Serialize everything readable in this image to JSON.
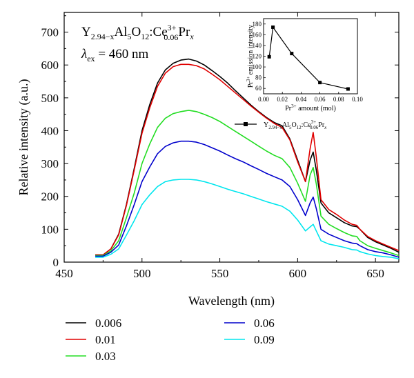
{
  "chart_data": [
    {
      "type": "line",
      "title": "",
      "annotation": {
        "formula": {
          "base": "Y",
          "s1": "2.94−x",
          "mid1": "Al",
          "s2": "5",
          "mid2": "O",
          "s3": "12",
          "mid3": ":Ce",
          "sup": "3+",
          "s4": "0.06",
          "mid4": "Pr",
          "s5": "x"
        },
        "excitation": {
          "symbol": "λ",
          "sub": "ex",
          "value": " = 460 nm"
        }
      },
      "xlabel": "Wavelength (nm)",
      "ylabel": "Relative intensity (a.u.)",
      "xlim": [
        450,
        665
      ],
      "ylim": [
        0,
        760
      ],
      "xticks": [
        450,
        500,
        550,
        600,
        650
      ],
      "yticks": [
        0,
        100,
        200,
        300,
        400,
        500,
        600,
        700
      ],
      "grid": false,
      "legend_position": "bottom",
      "x": [
        470,
        475,
        480,
        485,
        490,
        495,
        500,
        505,
        510,
        515,
        520,
        525,
        530,
        535,
        540,
        545,
        550,
        555,
        560,
        565,
        570,
        575,
        580,
        585,
        590,
        595,
        600,
        605,
        608,
        610,
        612,
        615,
        620,
        625,
        630,
        635,
        638,
        640,
        645,
        650,
        655,
        660,
        665
      ],
      "series": [
        {
          "name": "0.006",
          "color": "#000000",
          "values": [
            22,
            22,
            40,
            85,
            175,
            285,
            400,
            480,
            545,
            585,
            605,
            615,
            618,
            612,
            600,
            583,
            565,
            545,
            522,
            500,
            478,
            458,
            440,
            425,
            415,
            375,
            310,
            245,
            310,
            335,
            280,
            180,
            150,
            135,
            120,
            110,
            108,
            100,
            75,
            62,
            52,
            42,
            30
          ]
        },
        {
          "name": "0.01",
          "color": "#e00000",
          "values": [
            22,
            22,
            40,
            83,
            172,
            280,
            392,
            470,
            535,
            575,
            595,
            602,
            602,
            598,
            588,
            572,
            555,
            535,
            515,
            495,
            475,
            456,
            438,
            422,
            410,
            372,
            305,
            245,
            345,
            395,
            320,
            190,
            160,
            145,
            128,
            115,
            112,
            100,
            78,
            65,
            55,
            45,
            35
          ]
        },
        {
          "name": "0.03",
          "color": "#22dd22",
          "values": [
            20,
            20,
            34,
            65,
            135,
            210,
            300,
            360,
            410,
            438,
            452,
            458,
            462,
            458,
            450,
            440,
            428,
            413,
            398,
            383,
            368,
            353,
            338,
            325,
            315,
            288,
            240,
            185,
            265,
            288,
            238,
            140,
            115,
            102,
            90,
            80,
            78,
            65,
            50,
            42,
            35,
            28,
            20
          ]
        },
        {
          "name": "0.06",
          "color": "#0000cc",
          "values": [
            18,
            18,
            30,
            52,
            110,
            175,
            245,
            290,
            330,
            352,
            363,
            368,
            368,
            365,
            358,
            348,
            338,
            326,
            315,
            305,
            293,
            282,
            270,
            260,
            250,
            230,
            190,
            142,
            180,
            198,
            163,
            100,
            85,
            75,
            65,
            58,
            56,
            50,
            38,
            32,
            28,
            22,
            15
          ]
        },
        {
          "name": "0.09",
          "color": "#00e6ee",
          "values": [
            15,
            15,
            24,
            40,
            82,
            126,
            175,
            205,
            230,
            245,
            250,
            252,
            252,
            250,
            245,
            238,
            230,
            222,
            215,
            208,
            200,
            192,
            184,
            177,
            170,
            155,
            128,
            95,
            107,
            115,
            95,
            65,
            55,
            50,
            45,
            38,
            37,
            32,
            25,
            20,
            17,
            15,
            10
          ]
        }
      ]
    },
    {
      "type": "line",
      "title": "",
      "xlabel_parts": {
        "pre": "Pr",
        "sup": "3+",
        "post": " amount (mol)"
      },
      "ylabel_parts": {
        "pre": "Pr",
        "sup": "3+",
        "post": " emission intensity"
      },
      "xlim": [
        0.0,
        0.1
      ],
      "ylim": [
        50,
        190
      ],
      "xticks": [
        "0.00",
        "0.02",
        "0.04",
        "0.06",
        "0.08",
        "0.10"
      ],
      "yticks": [
        60,
        80,
        100,
        120,
        140,
        160,
        180
      ],
      "legend_position": "bottom",
      "legend_label": {
        "base": "Y",
        "s1": "2.94−x",
        "mid1": "Al",
        "s2": "5",
        "mid2": "O",
        "s3": "12",
        "mid3": ":Ce",
        "sup": "3+",
        "s4": "0.06",
        "mid4": "Pr",
        "s5": "x"
      },
      "x": [
        0.006,
        0.01,
        0.03,
        0.06,
        0.09
      ],
      "values": [
        119,
        174,
        125,
        71,
        59
      ]
    }
  ]
}
